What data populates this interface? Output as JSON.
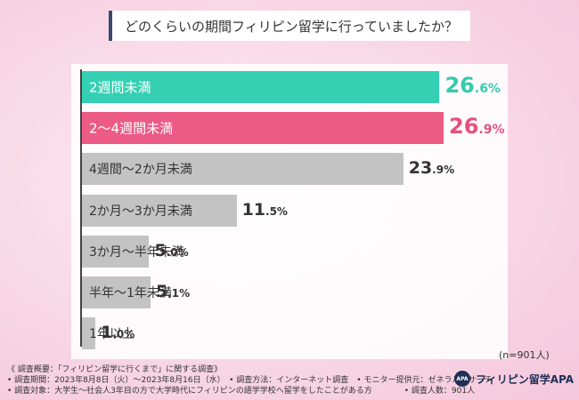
{
  "title": "どのくらいの期間フィリピン留学に行っていましたか？",
  "sample_note": "(n=901人)",
  "chart_data": {
    "type": "bar",
    "orientation": "horizontal",
    "title": "どのくらいの期間フィリピン留学に行っていましたか？",
    "categories": [
      "2週間未満",
      "2〜4週間未満",
      "4週間〜2か月未満",
      "2か月〜3か月未満",
      "3か月〜半年未満",
      "半年〜1年未満",
      "1年以上"
    ],
    "values": [
      26.6,
      26.9,
      23.9,
      11.5,
      5.0,
      5.1,
      1.0
    ],
    "value_labels": [
      {
        "int": "26",
        "dec": ".6%"
      },
      {
        "int": "26",
        "dec": ".9%"
      },
      {
        "int": "23",
        "dec": ".9%"
      },
      {
        "int": "11",
        "dec": ".5%"
      },
      {
        "int": "5",
        "dec": ".0%"
      },
      {
        "int": "5",
        "dec": ".1%"
      },
      {
        "int": "1",
        "dec": ".0%"
      }
    ],
    "unit": "%",
    "xlim": [
      0,
      26.9
    ],
    "colors": [
      "#35d0b4",
      "#ec5a86",
      "#c3c3c3",
      "#c3c3c3",
      "#c3c3c3",
      "#c3c3c3",
      "#c3c3c3"
    ],
    "value_colors": [
      "#35c9ad",
      "#e5507d",
      "#333333",
      "#333333",
      "#333333",
      "#333333",
      "#333333"
    ]
  },
  "footnotes": {
    "line1": "《 調査概要：「フィリピン留学に行くまで」に関する調査》",
    "line2": "• 調査期間：2023年8月8日（火）〜2023年8月16日（水）　• 調査方法：インターネット調査　• モニター提供元：ゼネラルリサーチ",
    "line3": "• 調査対象：大学生〜社会人3年目の方で大学時代にフィリピンの語学学校へ留学をしたことがある方　　　　• 調査人数：901人"
  },
  "logo": {
    "mark": "APA",
    "text": "フィリピン留学APA"
  }
}
